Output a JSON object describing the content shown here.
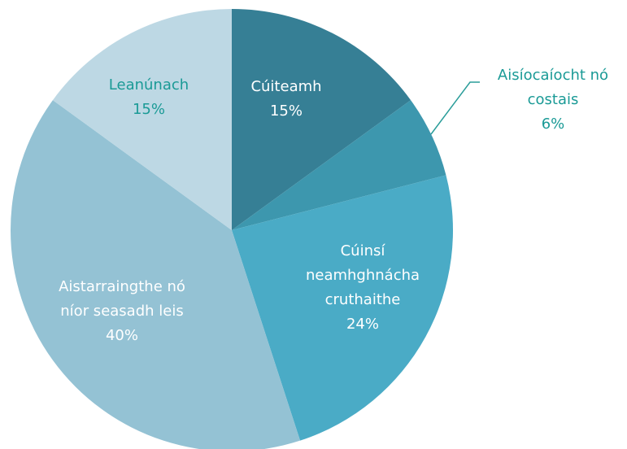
{
  "chart_data": {
    "type": "pie",
    "categories": [
      "Cúiteamh",
      "Aisíocaíocht nó costais",
      "Cúinsí neamhghnácha cruthaithe",
      "Aistarraingthe nó níor seasadh leis",
      "Leanúnach"
    ],
    "values": [
      15,
      6,
      24,
      40,
      15
    ],
    "value_labels": [
      "15%",
      "6%",
      "24%",
      "40%",
      "15%"
    ],
    "colors": [
      "#367f95",
      "#3d97ae",
      "#4aabc6",
      "#94c2d4",
      "#bdd8e4"
    ]
  }
}
